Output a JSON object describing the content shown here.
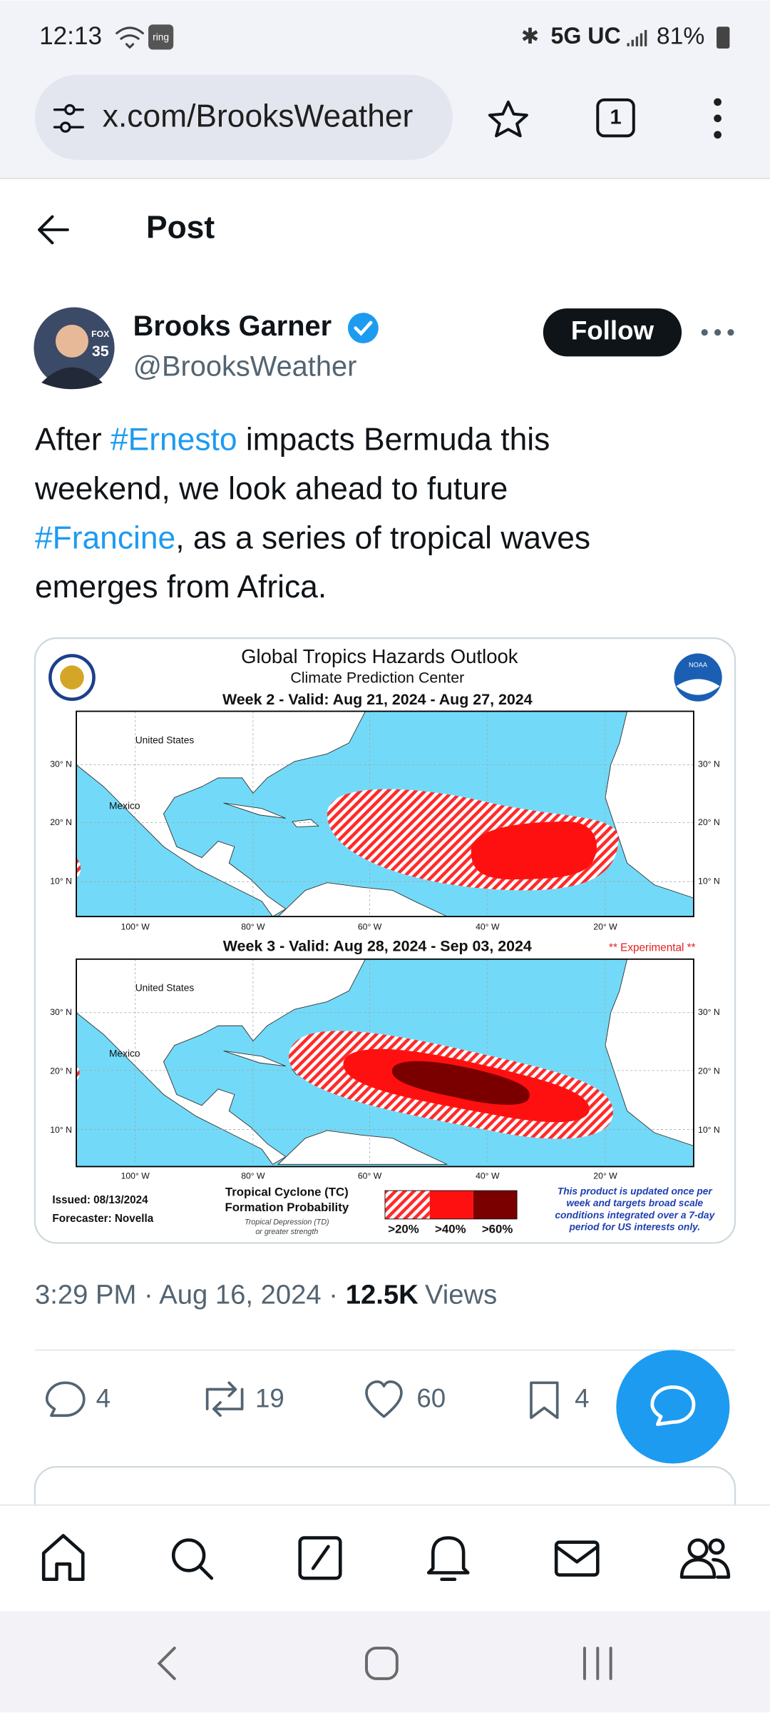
{
  "status_bar": {
    "time": "12:13",
    "ring_label": "ring",
    "network": "5G UC",
    "battery": "81%"
  },
  "browser": {
    "url": "x.com/BrooksWeather",
    "tab_count": 1
  },
  "header": {
    "title": "Post"
  },
  "post": {
    "author": {
      "name": "Brooks Garner",
      "handle": "@BrooksWeather",
      "avatar_badge": [
        "FOX",
        "35"
      ]
    },
    "follow_label": "Follow",
    "text": [
      [
        "After ",
        "#Ernesto",
        " impacts Bermuda this"
      ],
      [
        "weekend, we look ahead to future"
      ],
      [
        "#Francine",
        ", as a series of tropical waves"
      ],
      [
        "emerges from Africa."
      ]
    ],
    "image": {
      "title": "Global Tropics Hazards Outlook",
      "subtitle": "Climate Prediction Center",
      "logo_label": "NOAA",
      "weeks": [
        "Week 2 - Valid: Aug 21, 2024 - Aug 27, 2024",
        "Week 3 - Valid: Aug 28, 2024 - Sep 03, 2024"
      ],
      "experimental": "** Experimental **",
      "lat_labels": [
        "30° N",
        "20° N",
        "10° N"
      ],
      "lon_labels": [
        "100° W",
        "80° W",
        "60° W",
        "40° W",
        "20° W"
      ],
      "places": [
        "United States",
        "Mexico"
      ],
      "issued": "Issued: 08/13/2024",
      "forecaster": "Forecaster: Novella",
      "legend_title": [
        "Tropical Cyclone (TC)",
        "Formation Probability"
      ],
      "legend_subtitle": [
        "Tropical Depression (TD)",
        "or greater strength"
      ],
      "legend_labels": [
        ">20%",
        ">40%",
        ">60%"
      ],
      "note": [
        "This product is updated once per",
        "week and targets broad scale",
        "conditions integrated over a 7-day",
        "period for US interests only."
      ]
    },
    "timestamp": "3:29 PM · Aug 16, 2024 ·",
    "views": "12.5K",
    "views_label": "Views",
    "actions": {
      "replies": 4,
      "reposts": 19,
      "likes": 60,
      "bookmarks": 4
    }
  }
}
